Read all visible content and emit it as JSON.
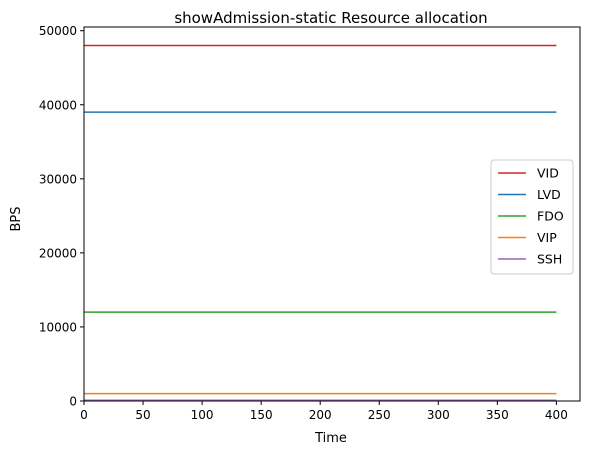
{
  "chart_data": {
    "type": "line",
    "title": "showAdmission-static Resource allocation",
    "xlabel": "Time",
    "ylabel": "BPS",
    "xlim": [
      0,
      420
    ],
    "ylim": [
      0,
      50500
    ],
    "xticks": [
      "0",
      "50",
      "100",
      "150",
      "200",
      "250",
      "300",
      "350",
      "400"
    ],
    "yticks": [
      "0",
      "10000",
      "20000",
      "30000",
      "40000",
      "50000"
    ],
    "x": [
      0,
      400
    ],
    "series": [
      {
        "name": "VID",
        "color": "#d62728",
        "values": [
          48000,
          48000
        ]
      },
      {
        "name": "LVD",
        "color": "#1f77b4",
        "values": [
          39000,
          39000
        ]
      },
      {
        "name": "FDO",
        "color": "#2ca02c",
        "values": [
          12000,
          12000
        ]
      },
      {
        "name": "VIP",
        "color": "#ff7f0e",
        "values": [
          1000,
          1000
        ]
      },
      {
        "name": "SSH",
        "color": "#9467bd",
        "values": [
          100,
          100
        ]
      }
    ],
    "grid": false,
    "legend": "center-right"
  }
}
